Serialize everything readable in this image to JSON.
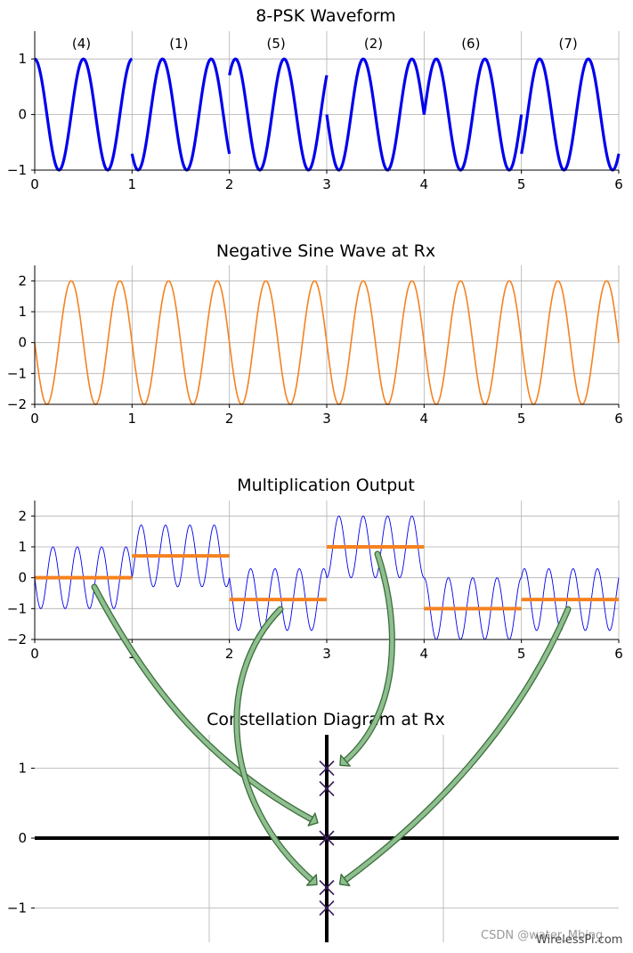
{
  "colors": {
    "psk": "#0000ee",
    "neg_sine": "#f58220",
    "mult": "#0000ee",
    "avg": "#f58220",
    "arrow_fill": "#8fbf8f",
    "arrow_stroke": "#3d6e3d",
    "marker": "#3a1e5c"
  },
  "chart_data": [
    {
      "type": "line",
      "title": "8-PSK Waveform",
      "xlim": [
        0,
        6
      ],
      "ylim": [
        -1,
        1.5
      ],
      "xticks": [
        "0",
        "1",
        "2",
        "3",
        "4",
        "5",
        "6"
      ],
      "yticks": [
        "1",
        "0",
        "−1"
      ],
      "segment_labels": [
        "(4)",
        "(1)",
        "(5)",
        "(2)",
        "(6)",
        "(7)"
      ],
      "series": [
        {
          "function": "sin(2π·2t − π/2 − k·π/4) per unit segment",
          "phase_k": [
            4,
            1,
            5,
            2,
            6,
            7
          ],
          "amplitude": 1,
          "cycles_per_unit": 2
        }
      ],
      "grid": true
    },
    {
      "type": "line",
      "title": "Negative Sine Wave at Rx",
      "xlim": [
        0,
        6
      ],
      "ylim": [
        -2,
        2.5
      ],
      "xticks": [
        "0",
        "1",
        "2",
        "3",
        "4",
        "5",
        "6"
      ],
      "yticks": [
        "2",
        "1",
        "0",
        "−1",
        "−2"
      ],
      "series": [
        {
          "function": "−2·sin(2π·2t)",
          "amplitude": 2,
          "cycles_per_unit": 2
        }
      ],
      "grid": true
    },
    {
      "type": "line",
      "title": "Multiplication Output",
      "xlim": [
        0,
        6
      ],
      "ylim": [
        -2,
        2.5
      ],
      "xticks": [
        "0",
        "1",
        "2",
        "3",
        "4",
        "5",
        "6"
      ],
      "yticks": [
        "2",
        "1",
        "0",
        "−1",
        "−2"
      ],
      "series": [
        {
          "function": "product of waveform and negative sine",
          "phase_k": [
            4,
            1,
            5,
            2,
            6,
            7
          ]
        }
      ],
      "segment_averages": [
        0,
        0.707,
        -0.707,
        1,
        -1,
        -0.707
      ],
      "grid": true
    },
    {
      "type": "scatter",
      "title": "Constellation Diagram at Rx",
      "xlim": [
        -2.5,
        2.5
      ],
      "ylim": [
        -1.5,
        1.5
      ],
      "yticks": [
        "1",
        "0",
        "−1"
      ],
      "points": [
        {
          "x": 0,
          "y": 1
        },
        {
          "x": 0,
          "y": 0.707
        },
        {
          "x": 0,
          "y": 0
        },
        {
          "x": 0,
          "y": -0.707
        },
        {
          "x": 0,
          "y": -1
        }
      ],
      "grid": true
    }
  ],
  "watermark": "CSDN @water_Mbing",
  "credit": "WirelessPi.com"
}
